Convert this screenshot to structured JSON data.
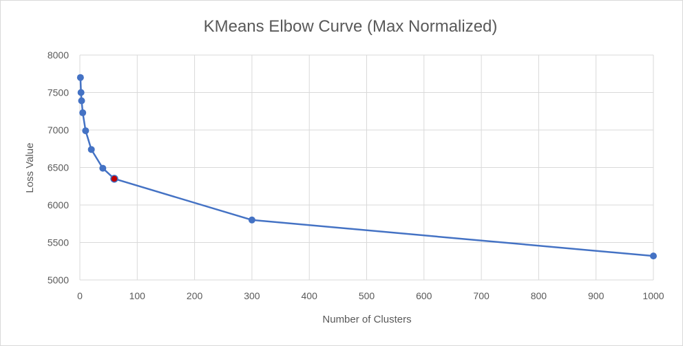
{
  "chart_data": {
    "type": "scatter",
    "title": "KMeans Elbow Curve (Max Normalized)",
    "xlabel": "Number  of Clusters",
    "ylabel": "Loss Value",
    "xlim": [
      0,
      1000
    ],
    "ylim": [
      5000,
      8000
    ],
    "xticks": [
      0,
      100,
      200,
      300,
      400,
      500,
      600,
      700,
      800,
      900,
      1000
    ],
    "yticks": [
      5000,
      5500,
      6000,
      6500,
      7000,
      7500,
      8000
    ],
    "grid": true,
    "legend": "none",
    "lines": true,
    "series": [
      {
        "x": [
          1,
          2,
          3,
          5,
          10,
          20,
          40,
          60,
          300,
          1000
        ],
        "y": [
          7700,
          7500,
          7390,
          7230,
          6990,
          6740,
          6490,
          6350,
          5800,
          5320
        ],
        "color": "#4472c4",
        "highlight_index": 7,
        "highlight_color": "#c00000"
      }
    ]
  }
}
